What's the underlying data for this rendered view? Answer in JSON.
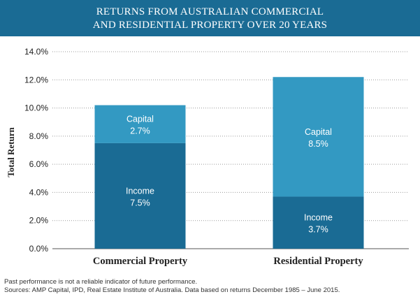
{
  "header": {
    "title_line1": "RETURNS FROM AUSTRALIAN COMMERCIAL",
    "title_line2": "AND RESIDENTIAL PROPERTY OVER 20 YEARS"
  },
  "chart_data": {
    "type": "bar",
    "stacked": true,
    "ylabel": "Total Return",
    "xlabel": "",
    "ylim": [
      0,
      14
    ],
    "yticks": [
      "0.0%",
      "2.0%",
      "4.0%",
      "6.0%",
      "8.0%",
      "10.0%",
      "12.0%",
      "14.0%"
    ],
    "grid": "horizontal-dotted",
    "categories": [
      "Commercial Property",
      "Residential Property"
    ],
    "series": [
      {
        "name": "Income",
        "color": "#1a6b94",
        "values": [
          7.5,
          3.7
        ],
        "labels": [
          {
            "name": "Income",
            "value": "7.5%"
          },
          {
            "name": "Income",
            "value": "3.7%"
          }
        ]
      },
      {
        "name": "Capital",
        "color": "#3399c2",
        "values": [
          2.7,
          8.5
        ],
        "labels": [
          {
            "name": "Capital",
            "value": "2.7%"
          },
          {
            "name": "Capital",
            "value": "8.5%"
          }
        ]
      }
    ]
  },
  "footer": {
    "disclaimer": "Past performance is not a reliable indicator of future performance.",
    "sources": "Sources: AMP Capital, IPD, Real Estate Institute of Australia. Data based on returns December 1985 – June 2015."
  }
}
